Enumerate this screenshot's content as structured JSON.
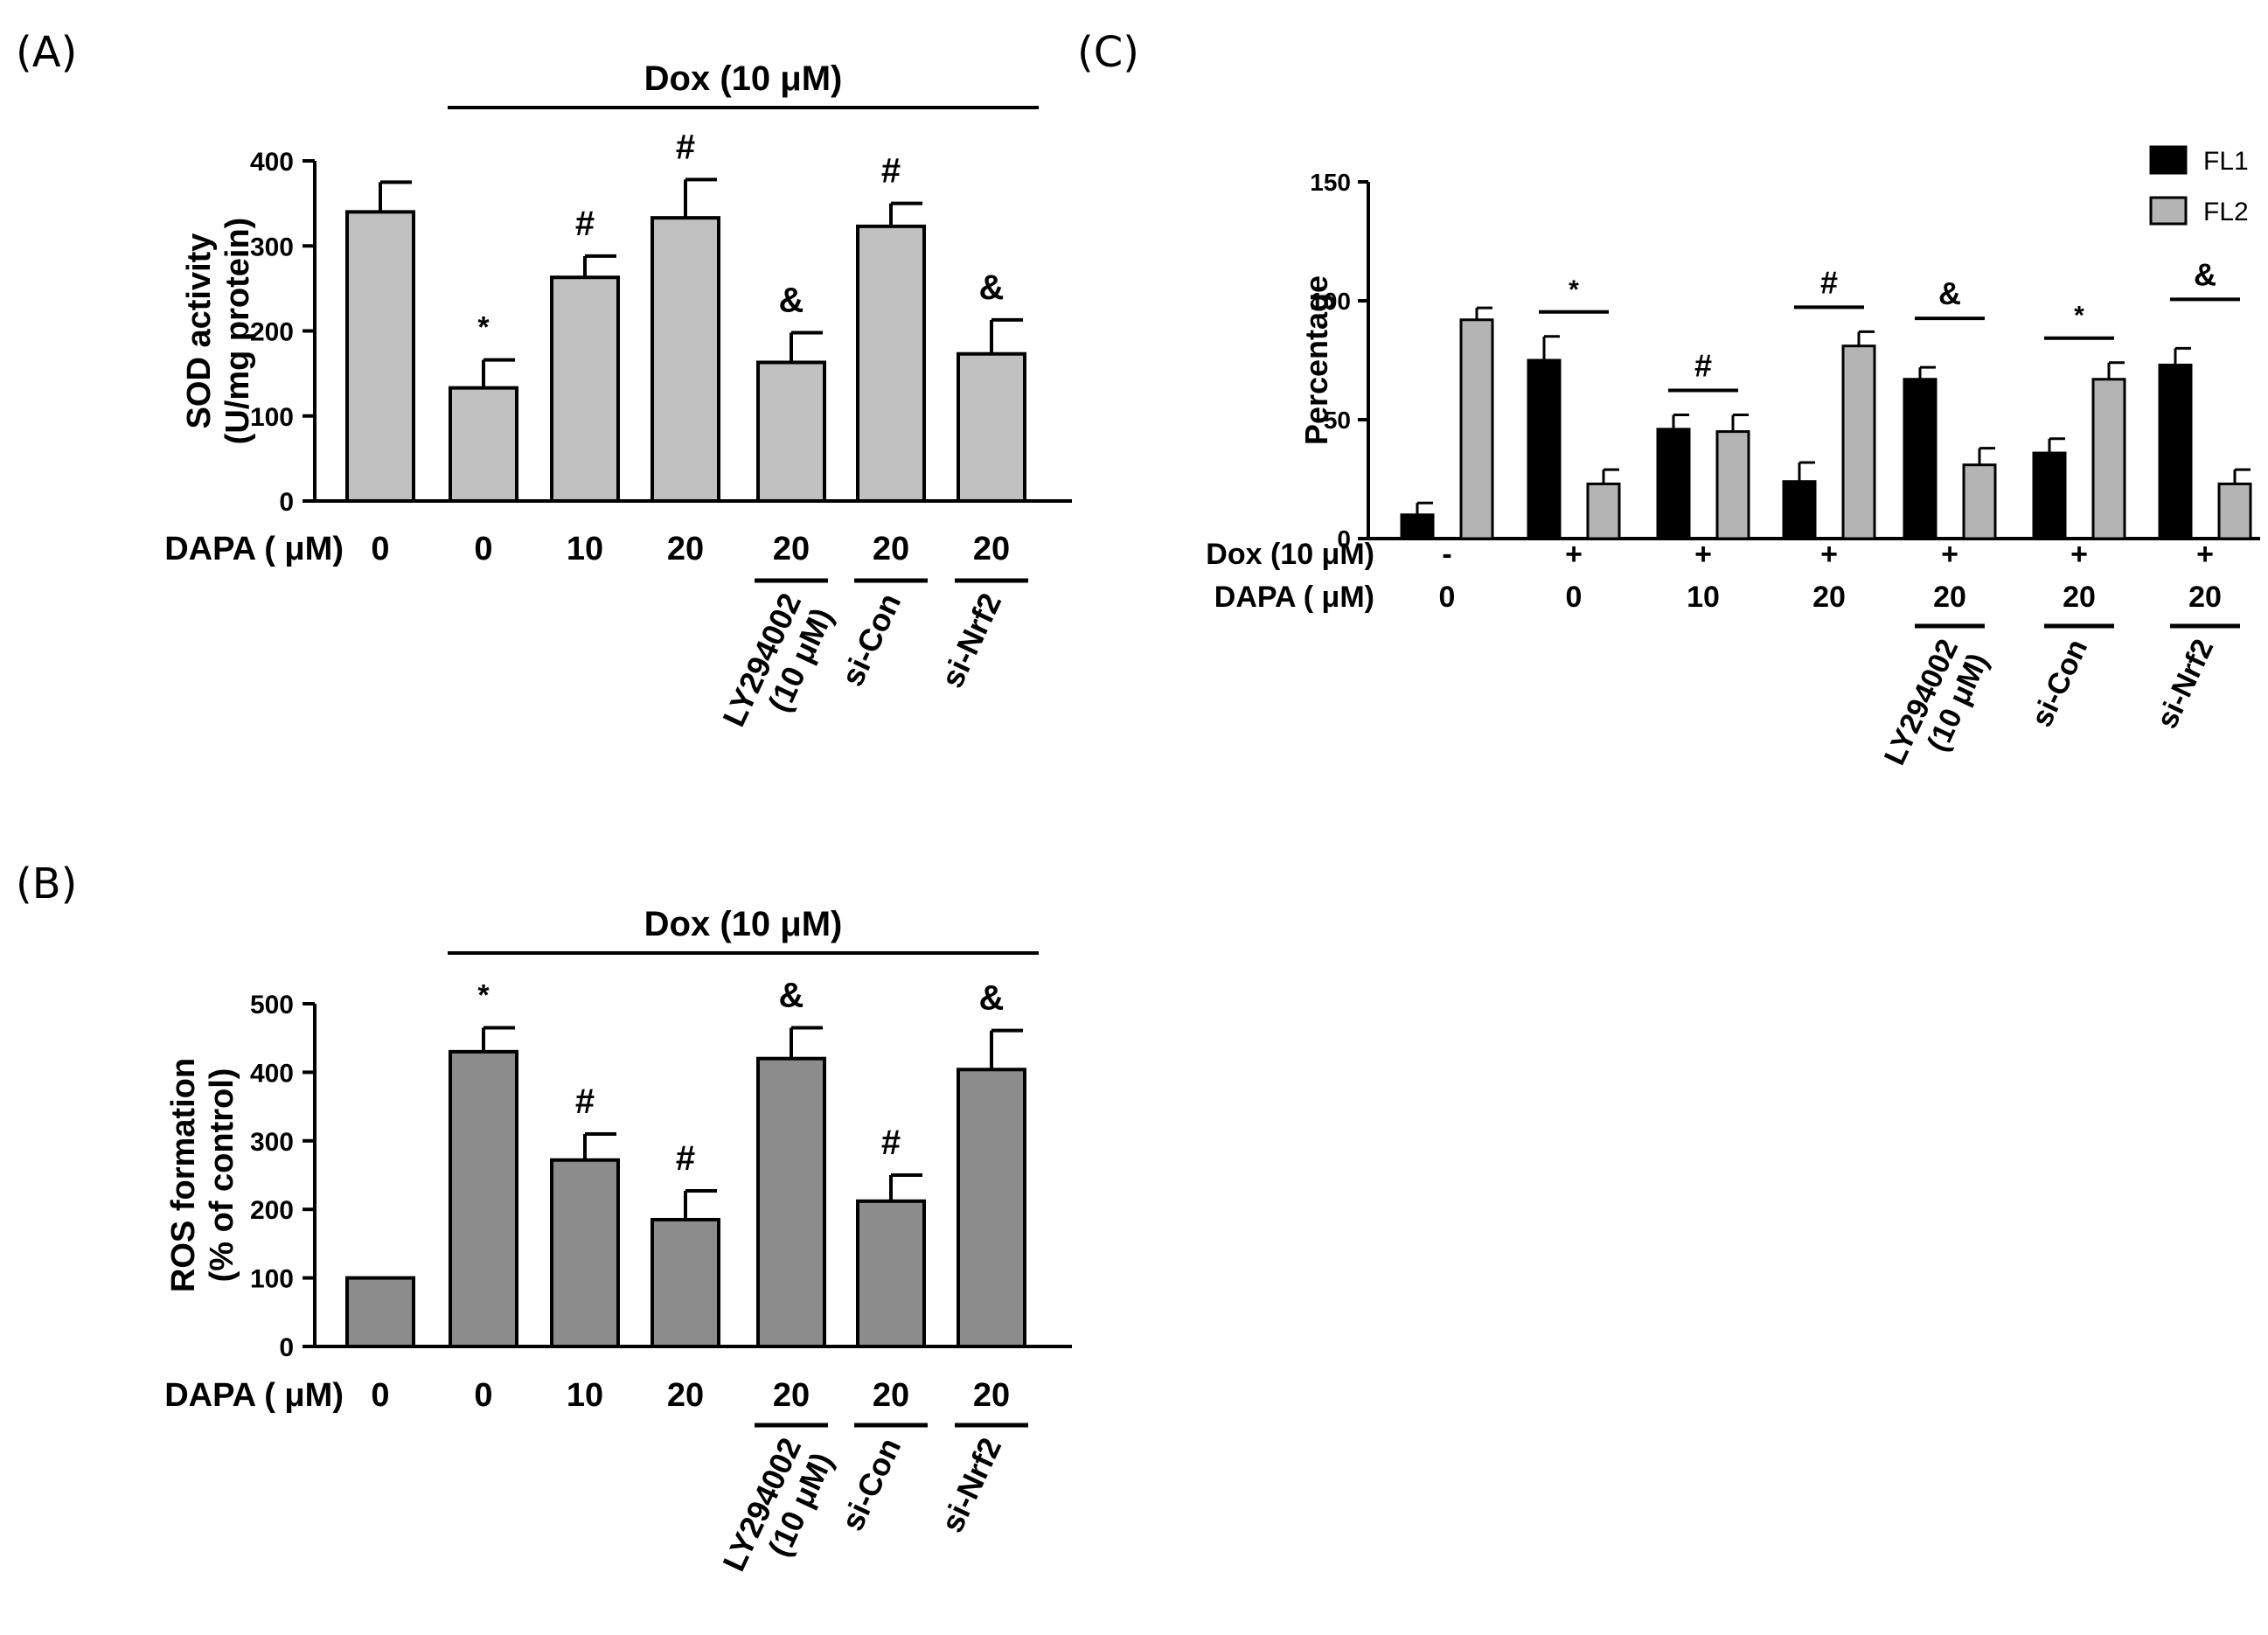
{
  "chart_data": [
    {
      "panel": "(A)",
      "type": "bar",
      "ylabel_line1": "SOD activity",
      "ylabel_line2": "(U/mg protein)",
      "ylim": [
        0,
        400
      ],
      "yticks": [
        0,
        100,
        200,
        300,
        400
      ],
      "values": [
        340,
        133,
        263,
        333,
        163,
        323,
        173
      ],
      "errors": [
        35,
        33,
        25,
        45,
        35,
        27,
        40
      ],
      "bar_color": "#c0c0c0",
      "significance": [
        "",
        "*",
        "#",
        "#",
        "&",
        "#",
        "&"
      ],
      "dox_label": "Dox (10 μM)",
      "dapa_label": "DAPA ( μM)",
      "dapa_values": [
        "0",
        "0",
        "10",
        "20",
        "20",
        "20",
        "20"
      ],
      "treatments": [
        {
          "bar": 4,
          "lines": [
            "LY294002",
            "(10 μM)"
          ]
        },
        {
          "bar": 5,
          "lines": [
            "si-Con"
          ]
        },
        {
          "bar": 6,
          "lines": [
            "si-Nrf2"
          ]
        }
      ]
    },
    {
      "panel": "(B)",
      "type": "bar",
      "ylabel_line1": "ROS formation",
      "ylabel_line2": "(% of control)",
      "ylim": [
        0,
        500
      ],
      "yticks": [
        0,
        100,
        200,
        300,
        400,
        500
      ],
      "values": [
        100,
        430,
        272,
        185,
        420,
        212,
        404
      ],
      "errors": [
        0,
        35,
        38,
        42,
        45,
        38,
        57
      ],
      "bar_color": "#8c8c8c",
      "significance": [
        "",
        "*",
        "#",
        "#",
        "&",
        "#",
        "&"
      ],
      "dox_label": "Dox (10 μM)",
      "dapa_label": "DAPA ( μM)",
      "dapa_values": [
        "0",
        "0",
        "10",
        "20",
        "20",
        "20",
        "20"
      ],
      "treatments": [
        {
          "bar": 4,
          "lines": [
            "LY294002",
            "(10 μM)"
          ]
        },
        {
          "bar": 5,
          "lines": [
            "si-Con"
          ]
        },
        {
          "bar": 6,
          "lines": [
            "si-Nrf2"
          ]
        }
      ]
    },
    {
      "panel": "(C)",
      "type": "bar",
      "ylabel": "Percentage",
      "ylim": [
        0,
        150
      ],
      "yticks": [
        0,
        50,
        100,
        150
      ],
      "series": [
        {
          "name": "FL1",
          "color": "#000000",
          "values": [
            10,
            75,
            46,
            24,
            67,
            36,
            73
          ],
          "errors": [
            5,
            10,
            6,
            8,
            5,
            6,
            7
          ]
        },
        {
          "name": "FL2",
          "color": "#b4b4b4",
          "values": [
            92,
            23,
            45,
            81,
            31,
            67,
            23
          ],
          "errors": [
            5,
            6,
            7,
            6,
            7,
            7,
            6
          ]
        }
      ],
      "significance": [
        "",
        "*",
        "#",
        "#",
        "&",
        "*",
        "&"
      ],
      "dox_label": "Dox (10 μM)",
      "dox_signs": [
        "-",
        "+",
        "+",
        "+",
        "+",
        "+",
        "+"
      ],
      "dapa_label": "DAPA ( μM)",
      "dapa_values": [
        "0",
        "0",
        "10",
        "20",
        "20",
        "20",
        "20"
      ],
      "treatments": [
        {
          "bar": 4,
          "lines": [
            "LY294002",
            "(10 μM)"
          ]
        },
        {
          "bar": 5,
          "lines": [
            "si-Con"
          ]
        },
        {
          "bar": 6,
          "lines": [
            "si-Nrf2"
          ]
        }
      ],
      "legend_position": "top-right"
    }
  ]
}
